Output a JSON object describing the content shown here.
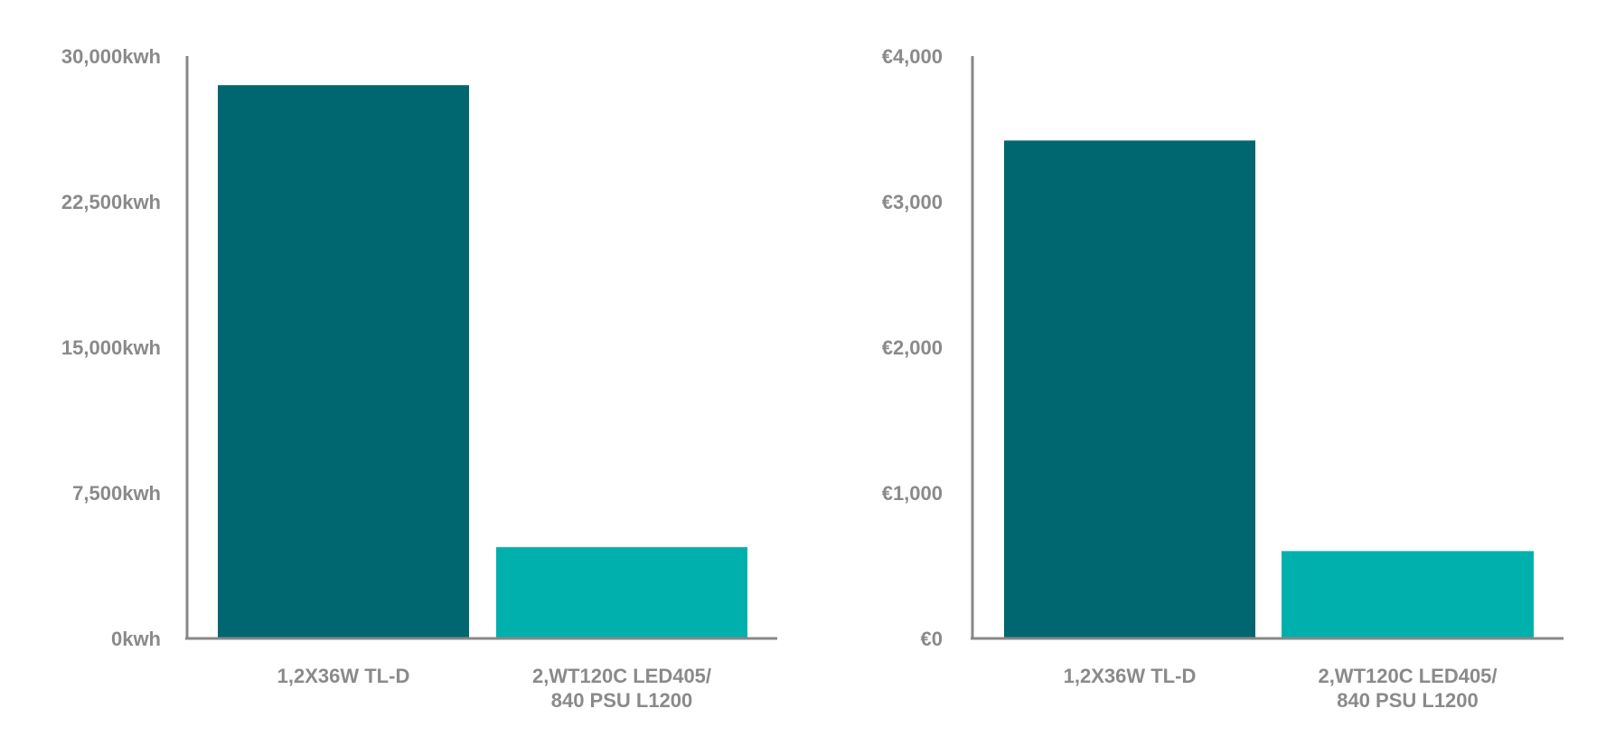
{
  "chart_data": [
    {
      "type": "bar",
      "title": "",
      "xlabel": "",
      "ylabel": "",
      "categories": [
        [
          "1,2X36W TL-D"
        ],
        [
          "2,WT120C LED405/",
          "840 PSU L1200"
        ]
      ],
      "values": [
        28500,
        4700
      ],
      "ylim": [
        0,
        30000
      ],
      "ticks": [
        {
          "value": 0,
          "label": "0kwh"
        },
        {
          "value": 7500,
          "label": "7,500kwh"
        },
        {
          "value": 15000,
          "label": "15,000kwh"
        },
        {
          "value": 22500,
          "label": "22,500kwh"
        },
        {
          "value": 30000,
          "label": "30,000kwh"
        }
      ],
      "colors": [
        "#006670",
        "#00b0ad"
      ],
      "grid": false
    },
    {
      "type": "bar",
      "title": "",
      "xlabel": "",
      "ylabel": "",
      "categories": [
        [
          "1,2X36W TL-D"
        ],
        [
          "2,WT120C LED405/",
          "840 PSU L1200"
        ]
      ],
      "values": [
        3420,
        600
      ],
      "ylim": [
        0,
        4000
      ],
      "ticks": [
        {
          "value": 0,
          "label": "€0"
        },
        {
          "value": 1000,
          "label": "€1,000"
        },
        {
          "value": 2000,
          "label": "€2,000"
        },
        {
          "value": 3000,
          "label": "€3,000"
        },
        {
          "value": 4000,
          "label": "€4,000"
        }
      ],
      "colors": [
        "#006670",
        "#00b0ad"
      ],
      "grid": false
    }
  ]
}
